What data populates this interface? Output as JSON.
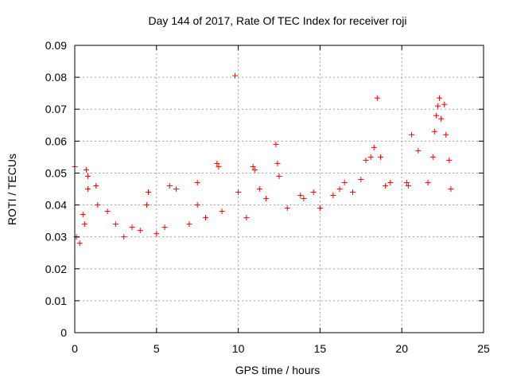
{
  "chart_data": {
    "type": "scatter",
    "title": "Day 144 of 2017, Rate Of TEC Index for receiver roji",
    "xlabel": "GPS time / hours",
    "ylabel": "ROTI / TECUs",
    "xlim": [
      0,
      25
    ],
    "ylim": [
      0,
      0.09
    ],
    "xticks": [
      0,
      5,
      10,
      15,
      20,
      25
    ],
    "xtick_labels": [
      "0",
      "5",
      "10",
      "15",
      "20",
      "25"
    ],
    "yticks": [
      0,
      0.01,
      0.02,
      0.03,
      0.04,
      0.05,
      0.06,
      0.07,
      0.08,
      0.09
    ],
    "ytick_labels": [
      "0",
      "0.01",
      "0.02",
      "0.03",
      "0.04",
      "0.05",
      "0.06",
      "0.07",
      "0.08",
      "0.09"
    ],
    "grid": true,
    "marker": "+",
    "marker_color": "#ff0000",
    "series": [
      {
        "name": "ROTI",
        "points": [
          [
            0.0,
            0.052
          ],
          [
            0.1,
            0.03
          ],
          [
            0.3,
            0.028
          ],
          [
            0.5,
            0.037
          ],
          [
            0.6,
            0.034
          ],
          [
            0.7,
            0.051
          ],
          [
            0.8,
            0.049
          ],
          [
            0.8,
            0.045
          ],
          [
            1.3,
            0.046
          ],
          [
            1.4,
            0.04
          ],
          [
            2.0,
            0.038
          ],
          [
            2.5,
            0.034
          ],
          [
            3.0,
            0.03
          ],
          [
            3.5,
            0.033
          ],
          [
            4.0,
            0.032
          ],
          [
            4.4,
            0.04
          ],
          [
            4.5,
            0.044
          ],
          [
            5.0,
            0.031
          ],
          [
            5.5,
            0.033
          ],
          [
            5.8,
            0.046
          ],
          [
            6.2,
            0.045
          ],
          [
            7.0,
            0.034
          ],
          [
            7.5,
            0.04
          ],
          [
            7.5,
            0.047
          ],
          [
            8.0,
            0.036
          ],
          [
            8.7,
            0.053
          ],
          [
            8.8,
            0.052
          ],
          [
            9.0,
            0.038
          ],
          [
            9.8,
            0.0805
          ],
          [
            10.0,
            0.044
          ],
          [
            10.5,
            0.036
          ],
          [
            10.9,
            0.052
          ],
          [
            11.0,
            0.051
          ],
          [
            11.3,
            0.045
          ],
          [
            11.7,
            0.042
          ],
          [
            12.3,
            0.059
          ],
          [
            12.4,
            0.053
          ],
          [
            12.5,
            0.049
          ],
          [
            13.0,
            0.039
          ],
          [
            13.8,
            0.043
          ],
          [
            14.0,
            0.042
          ],
          [
            14.6,
            0.044
          ],
          [
            15.0,
            0.039
          ],
          [
            15.8,
            0.043
          ],
          [
            16.2,
            0.045
          ],
          [
            16.5,
            0.047
          ],
          [
            17.0,
            0.044
          ],
          [
            17.5,
            0.048
          ],
          [
            17.8,
            0.054
          ],
          [
            18.1,
            0.055
          ],
          [
            18.3,
            0.058
          ],
          [
            18.5,
            0.0735
          ],
          [
            18.7,
            0.055
          ],
          [
            19.0,
            0.046
          ],
          [
            19.3,
            0.047
          ],
          [
            20.3,
            0.047
          ],
          [
            20.4,
            0.046
          ],
          [
            20.6,
            0.062
          ],
          [
            21.0,
            0.057
          ],
          [
            21.6,
            0.047
          ],
          [
            21.9,
            0.055
          ],
          [
            22.0,
            0.063
          ],
          [
            22.1,
            0.068
          ],
          [
            22.2,
            0.071
          ],
          [
            22.3,
            0.0735
          ],
          [
            22.4,
            0.067
          ],
          [
            22.6,
            0.0715
          ],
          [
            22.7,
            0.062
          ],
          [
            22.9,
            0.054
          ],
          [
            23.0,
            0.045
          ]
        ]
      }
    ]
  }
}
